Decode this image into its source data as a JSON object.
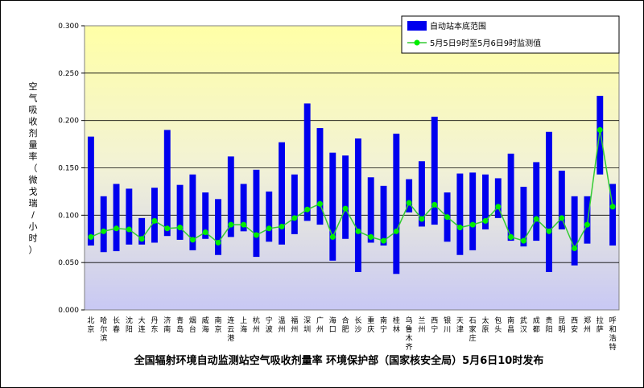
{
  "chart_data": {
    "type": "bar",
    "title": "全国辐射环境自动监测站空气吸收剂量率 环境保护部（国家核安全局）5月6日10时发布",
    "ylabel": "空气吸收剂量率（微戈瑞/小时）",
    "xlabel": "",
    "ylim": [
      0,
      0.3
    ],
    "yticks": [
      "0.000",
      "0.050",
      "0.100",
      "0.150",
      "0.200",
      "0.250",
      "0.300"
    ],
    "grid": true,
    "legend_position": "top-right",
    "colors": {
      "bar": "#0000ee",
      "line": "#33cc33",
      "marker": "#00ee00"
    },
    "categories": [
      "北京",
      "哈尔滨",
      "长春",
      "沈阳",
      "大连",
      "丹东",
      "济南",
      "青岛",
      "烟台",
      "威海",
      "南京",
      "连云港",
      "上海",
      "杭州",
      "宁波",
      "温州",
      "福州",
      "深圳",
      "广州",
      "海口",
      "合肥",
      "长沙",
      "重庆",
      "南宁",
      "桂林",
      "乌鲁木齐",
      "兰州",
      "西宁",
      "银川",
      "天津",
      "石家庄",
      "太原",
      "包头",
      "南昌",
      "武汉",
      "成都",
      "贵阳",
      "昆明",
      "西安",
      "郑州",
      "拉萨",
      "呼和浩特"
    ],
    "series": [
      {
        "name": "自动站本底范围",
        "kind": "range-bar",
        "low": [
          0.068,
          0.061,
          0.062,
          0.069,
          0.069,
          0.071,
          0.078,
          0.074,
          0.063,
          0.075,
          0.058,
          0.077,
          0.083,
          0.056,
          0.072,
          0.069,
          0.08,
          0.094,
          0.09,
          0.052,
          0.075,
          0.04,
          0.071,
          0.068,
          0.038,
          0.103,
          0.088,
          0.09,
          0.072,
          0.058,
          0.063,
          0.085,
          0.097,
          0.073,
          0.067,
          0.073,
          0.04,
          0.085,
          0.047,
          0.07,
          0.143,
          0.068
        ],
        "high": [
          0.183,
          0.12,
          0.133,
          0.128,
          0.097,
          0.129,
          0.19,
          0.132,
          0.143,
          0.124,
          0.117,
          0.162,
          0.133,
          0.148,
          0.125,
          0.177,
          0.143,
          0.218,
          0.192,
          0.166,
          0.163,
          0.181,
          0.14,
          0.131,
          0.186,
          0.138,
          0.157,
          0.204,
          0.124,
          0.144,
          0.145,
          0.143,
          0.139,
          0.165,
          0.13,
          0.156,
          0.188,
          0.147,
          0.12,
          0.12,
          0.226,
          0.133
        ]
      },
      {
        "name": "5月5日9时至5月6日9时监测值",
        "kind": "line",
        "values": [
          0.077,
          0.083,
          0.086,
          0.085,
          0.075,
          0.094,
          0.086,
          0.087,
          0.074,
          0.082,
          0.071,
          0.09,
          0.09,
          0.079,
          0.086,
          0.088,
          0.097,
          0.106,
          0.112,
          0.077,
          0.107,
          0.083,
          0.077,
          0.073,
          0.083,
          0.113,
          0.096,
          0.111,
          0.098,
          0.087,
          0.09,
          0.094,
          0.109,
          0.077,
          0.073,
          0.096,
          0.083,
          0.097,
          0.065,
          0.09,
          0.19,
          0.109
        ]
      }
    ]
  }
}
